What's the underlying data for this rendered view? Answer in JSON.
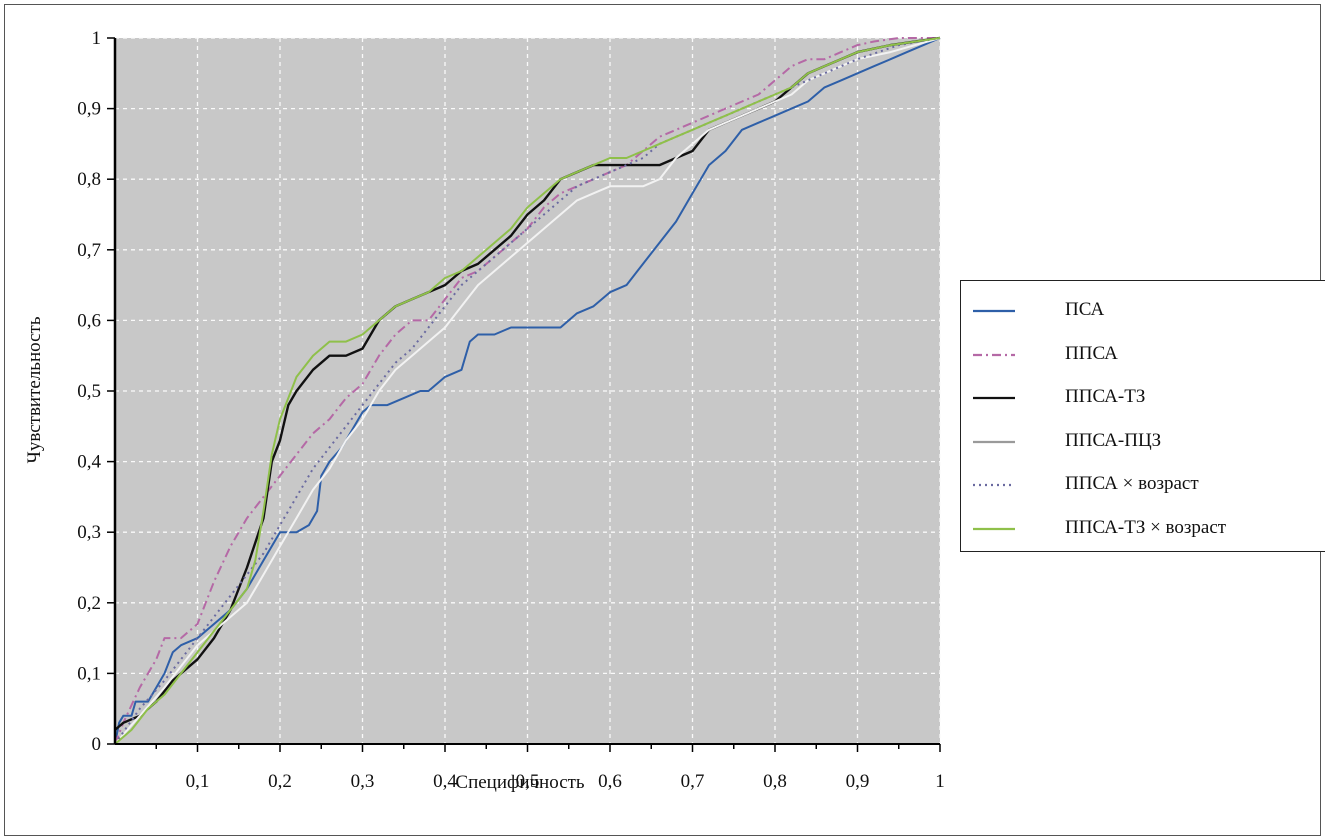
{
  "chart_data": {
    "type": "line",
    "xlabel": "Специфичность",
    "ylabel": "Чувствительность",
    "xlim": [
      0,
      1
    ],
    "ylim": [
      0,
      1
    ],
    "x_ticks": [
      "0,1",
      "0,2",
      "0,3",
      "0,4",
      "0,5",
      "0,6",
      "0,7",
      "0,8",
      "0,9",
      "1"
    ],
    "y_ticks": [
      "0",
      "0,1",
      "0,2",
      "0,3",
      "0,4",
      "0,5",
      "0,6",
      "0,7",
      "0,8",
      "0,9",
      "1"
    ],
    "grid": true,
    "plot_background": "#c8c8c8",
    "legend_position": "right",
    "series": [
      {
        "name": "ПСА",
        "color": "#2e5fa8",
        "dash": "solid",
        "points": [
          [
            0,
            0
          ],
          [
            0.005,
            0.03
          ],
          [
            0.01,
            0.04
          ],
          [
            0.02,
            0.04
          ],
          [
            0.025,
            0.06
          ],
          [
            0.03,
            0.06
          ],
          [
            0.04,
            0.06
          ],
          [
            0.05,
            0.08
          ],
          [
            0.06,
            0.1
          ],
          [
            0.07,
            0.13
          ],
          [
            0.08,
            0.14
          ],
          [
            0.1,
            0.15
          ],
          [
            0.12,
            0.17
          ],
          [
            0.14,
            0.19
          ],
          [
            0.16,
            0.22
          ],
          [
            0.18,
            0.26
          ],
          [
            0.2,
            0.3
          ],
          [
            0.22,
            0.3
          ],
          [
            0.235,
            0.31
          ],
          [
            0.245,
            0.33
          ],
          [
            0.25,
            0.38
          ],
          [
            0.26,
            0.4
          ],
          [
            0.275,
            0.42
          ],
          [
            0.29,
            0.45
          ],
          [
            0.3,
            0.47
          ],
          [
            0.31,
            0.48
          ],
          [
            0.33,
            0.48
          ],
          [
            0.35,
            0.49
          ],
          [
            0.37,
            0.5
          ],
          [
            0.38,
            0.5
          ],
          [
            0.4,
            0.52
          ],
          [
            0.42,
            0.53
          ],
          [
            0.43,
            0.57
          ],
          [
            0.44,
            0.58
          ],
          [
            0.46,
            0.58
          ],
          [
            0.48,
            0.59
          ],
          [
            0.5,
            0.59
          ],
          [
            0.52,
            0.59
          ],
          [
            0.54,
            0.59
          ],
          [
            0.56,
            0.61
          ],
          [
            0.58,
            0.62
          ],
          [
            0.6,
            0.64
          ],
          [
            0.62,
            0.65
          ],
          [
            0.64,
            0.68
          ],
          [
            0.66,
            0.71
          ],
          [
            0.68,
            0.74
          ],
          [
            0.7,
            0.78
          ],
          [
            0.72,
            0.82
          ],
          [
            0.74,
            0.84
          ],
          [
            0.76,
            0.87
          ],
          [
            0.78,
            0.88
          ],
          [
            0.8,
            0.89
          ],
          [
            0.82,
            0.9
          ],
          [
            0.84,
            0.91
          ],
          [
            0.86,
            0.93
          ],
          [
            0.88,
            0.94
          ],
          [
            0.9,
            0.95
          ],
          [
            0.92,
            0.96
          ],
          [
            0.94,
            0.97
          ],
          [
            0.96,
            0.98
          ],
          [
            0.98,
            0.99
          ],
          [
            1,
            1
          ]
        ]
      },
      {
        "name": "ППСА",
        "color": "#b569a6",
        "dash": "dashdot",
        "points": [
          [
            0,
            0
          ],
          [
            0.01,
            0.03
          ],
          [
            0.03,
            0.08
          ],
          [
            0.05,
            0.12
          ],
          [
            0.06,
            0.15
          ],
          [
            0.08,
            0.15
          ],
          [
            0.1,
            0.17
          ],
          [
            0.12,
            0.23
          ],
          [
            0.14,
            0.28
          ],
          [
            0.16,
            0.32
          ],
          [
            0.18,
            0.35
          ],
          [
            0.2,
            0.38
          ],
          [
            0.22,
            0.41
          ],
          [
            0.24,
            0.44
          ],
          [
            0.26,
            0.46
          ],
          [
            0.28,
            0.49
          ],
          [
            0.3,
            0.51
          ],
          [
            0.32,
            0.55
          ],
          [
            0.34,
            0.58
          ],
          [
            0.36,
            0.6
          ],
          [
            0.38,
            0.6
          ],
          [
            0.4,
            0.63
          ],
          [
            0.42,
            0.66
          ],
          [
            0.44,
            0.67
          ],
          [
            0.46,
            0.69
          ],
          [
            0.48,
            0.71
          ],
          [
            0.5,
            0.73
          ],
          [
            0.52,
            0.76
          ],
          [
            0.54,
            0.78
          ],
          [
            0.56,
            0.79
          ],
          [
            0.58,
            0.8
          ],
          [
            0.6,
            0.81
          ],
          [
            0.62,
            0.82
          ],
          [
            0.64,
            0.84
          ],
          [
            0.66,
            0.86
          ],
          [
            0.68,
            0.87
          ],
          [
            0.7,
            0.88
          ],
          [
            0.72,
            0.89
          ],
          [
            0.74,
            0.9
          ],
          [
            0.76,
            0.91
          ],
          [
            0.78,
            0.92
          ],
          [
            0.8,
            0.94
          ],
          [
            0.82,
            0.96
          ],
          [
            0.84,
            0.97
          ],
          [
            0.86,
            0.97
          ],
          [
            0.88,
            0.98
          ],
          [
            0.9,
            0.99
          ],
          [
            0.92,
            0.995
          ],
          [
            0.95,
            1
          ],
          [
            1,
            1
          ]
        ]
      },
      {
        "name": "ППСА-ТЗ",
        "color": "#111111",
        "dash": "solid",
        "points": [
          [
            0,
            0.02
          ],
          [
            0.01,
            0.03
          ],
          [
            0.03,
            0.04
          ],
          [
            0.05,
            0.06
          ],
          [
            0.07,
            0.09
          ],
          [
            0.09,
            0.11
          ],
          [
            0.1,
            0.12
          ],
          [
            0.12,
            0.15
          ],
          [
            0.14,
            0.19
          ],
          [
            0.16,
            0.25
          ],
          [
            0.18,
            0.32
          ],
          [
            0.19,
            0.4
          ],
          [
            0.2,
            0.43
          ],
          [
            0.21,
            0.48
          ],
          [
            0.22,
            0.5
          ],
          [
            0.24,
            0.53
          ],
          [
            0.26,
            0.55
          ],
          [
            0.28,
            0.55
          ],
          [
            0.3,
            0.56
          ],
          [
            0.32,
            0.6
          ],
          [
            0.34,
            0.62
          ],
          [
            0.36,
            0.63
          ],
          [
            0.38,
            0.64
          ],
          [
            0.4,
            0.65
          ],
          [
            0.42,
            0.67
          ],
          [
            0.44,
            0.68
          ],
          [
            0.46,
            0.7
          ],
          [
            0.48,
            0.72
          ],
          [
            0.5,
            0.75
          ],
          [
            0.52,
            0.77
          ],
          [
            0.54,
            0.8
          ],
          [
            0.56,
            0.81
          ],
          [
            0.58,
            0.82
          ],
          [
            0.6,
            0.82
          ],
          [
            0.62,
            0.82
          ],
          [
            0.64,
            0.82
          ],
          [
            0.66,
            0.82
          ],
          [
            0.68,
            0.83
          ],
          [
            0.7,
            0.84
          ],
          [
            0.72,
            0.87
          ],
          [
            0.74,
            0.88
          ],
          [
            0.76,
            0.89
          ],
          [
            0.78,
            0.9
          ],
          [
            0.8,
            0.91
          ],
          [
            0.82,
            0.93
          ],
          [
            0.84,
            0.95
          ],
          [
            0.86,
            0.96
          ],
          [
            0.88,
            0.97
          ],
          [
            0.9,
            0.98
          ],
          [
            0.94,
            0.99
          ],
          [
            1,
            1
          ]
        ]
      },
      {
        "name": "ППСА-ПЦЗ",
        "color": "#f2f2f2",
        "dash": "solid",
        "points": [
          [
            0,
            0
          ],
          [
            0.03,
            0.04
          ],
          [
            0.06,
            0.08
          ],
          [
            0.08,
            0.11
          ],
          [
            0.1,
            0.14
          ],
          [
            0.12,
            0.16
          ],
          [
            0.14,
            0.18
          ],
          [
            0.16,
            0.2
          ],
          [
            0.18,
            0.24
          ],
          [
            0.2,
            0.28
          ],
          [
            0.22,
            0.32
          ],
          [
            0.24,
            0.36
          ],
          [
            0.26,
            0.39
          ],
          [
            0.28,
            0.43
          ],
          [
            0.3,
            0.46
          ],
          [
            0.32,
            0.5
          ],
          [
            0.34,
            0.53
          ],
          [
            0.36,
            0.55
          ],
          [
            0.38,
            0.57
          ],
          [
            0.4,
            0.59
          ],
          [
            0.42,
            0.62
          ],
          [
            0.44,
            0.65
          ],
          [
            0.46,
            0.67
          ],
          [
            0.48,
            0.69
          ],
          [
            0.5,
            0.71
          ],
          [
            0.52,
            0.73
          ],
          [
            0.54,
            0.75
          ],
          [
            0.56,
            0.77
          ],
          [
            0.58,
            0.78
          ],
          [
            0.6,
            0.79
          ],
          [
            0.62,
            0.79
          ],
          [
            0.64,
            0.79
          ],
          [
            0.66,
            0.8
          ],
          [
            0.68,
            0.83
          ],
          [
            0.7,
            0.85
          ],
          [
            0.72,
            0.87
          ],
          [
            0.74,
            0.88
          ],
          [
            0.76,
            0.89
          ],
          [
            0.78,
            0.9
          ],
          [
            0.8,
            0.91
          ],
          [
            0.82,
            0.92
          ],
          [
            0.84,
            0.94
          ],
          [
            0.86,
            0.95
          ],
          [
            0.88,
            0.96
          ],
          [
            0.9,
            0.97
          ],
          [
            0.94,
            0.98
          ],
          [
            1,
            1
          ]
        ]
      },
      {
        "name": "ППСА × возраст",
        "color": "#6a6aa0",
        "dash": "dotted",
        "points": [
          [
            0,
            0
          ],
          [
            0.03,
            0.05
          ],
          [
            0.06,
            0.09
          ],
          [
            0.08,
            0.12
          ],
          [
            0.1,
            0.15
          ],
          [
            0.12,
            0.18
          ],
          [
            0.14,
            0.21
          ],
          [
            0.16,
            0.24
          ],
          [
            0.18,
            0.27
          ],
          [
            0.2,
            0.31
          ],
          [
            0.22,
            0.35
          ],
          [
            0.24,
            0.39
          ],
          [
            0.26,
            0.42
          ],
          [
            0.28,
            0.45
          ],
          [
            0.3,
            0.48
          ],
          [
            0.32,
            0.51
          ],
          [
            0.34,
            0.54
          ],
          [
            0.36,
            0.56
          ],
          [
            0.38,
            0.59
          ],
          [
            0.4,
            0.62
          ],
          [
            0.42,
            0.65
          ],
          [
            0.44,
            0.67
          ],
          [
            0.46,
            0.69
          ],
          [
            0.48,
            0.71
          ],
          [
            0.5,
            0.73
          ],
          [
            0.52,
            0.75
          ],
          [
            0.54,
            0.77
          ],
          [
            0.56,
            0.79
          ],
          [
            0.58,
            0.8
          ],
          [
            0.6,
            0.81
          ],
          [
            0.62,
            0.82
          ],
          [
            0.64,
            0.83
          ],
          [
            0.66,
            0.85
          ],
          [
            0.68,
            0.86
          ],
          [
            0.7,
            0.87
          ],
          [
            0.74,
            0.89
          ],
          [
            0.78,
            0.91
          ],
          [
            0.82,
            0.93
          ],
          [
            0.86,
            0.95
          ],
          [
            0.9,
            0.97
          ],
          [
            0.95,
            0.99
          ],
          [
            1,
            1
          ]
        ]
      },
      {
        "name": "ППСА-ТЗ × возраст",
        "color": "#8fc04a",
        "dash": "solid",
        "points": [
          [
            0,
            0
          ],
          [
            0.02,
            0.02
          ],
          [
            0.04,
            0.05
          ],
          [
            0.06,
            0.07
          ],
          [
            0.08,
            0.1
          ],
          [
            0.1,
            0.13
          ],
          [
            0.12,
            0.16
          ],
          [
            0.14,
            0.19
          ],
          [
            0.16,
            0.22
          ],
          [
            0.17,
            0.26
          ],
          [
            0.18,
            0.33
          ],
          [
            0.19,
            0.41
          ],
          [
            0.2,
            0.46
          ],
          [
            0.21,
            0.49
          ],
          [
            0.22,
            0.52
          ],
          [
            0.24,
            0.55
          ],
          [
            0.26,
            0.57
          ],
          [
            0.28,
            0.57
          ],
          [
            0.3,
            0.58
          ],
          [
            0.32,
            0.6
          ],
          [
            0.34,
            0.62
          ],
          [
            0.36,
            0.63
          ],
          [
            0.38,
            0.64
          ],
          [
            0.4,
            0.66
          ],
          [
            0.42,
            0.67
          ],
          [
            0.44,
            0.69
          ],
          [
            0.46,
            0.71
          ],
          [
            0.48,
            0.73
          ],
          [
            0.5,
            0.76
          ],
          [
            0.52,
            0.78
          ],
          [
            0.54,
            0.8
          ],
          [
            0.56,
            0.81
          ],
          [
            0.58,
            0.82
          ],
          [
            0.6,
            0.83
          ],
          [
            0.62,
            0.83
          ],
          [
            0.64,
            0.84
          ],
          [
            0.66,
            0.85
          ],
          [
            0.68,
            0.86
          ],
          [
            0.7,
            0.87
          ],
          [
            0.72,
            0.88
          ],
          [
            0.74,
            0.89
          ],
          [
            0.76,
            0.9
          ],
          [
            0.78,
            0.91
          ],
          [
            0.8,
            0.92
          ],
          [
            0.82,
            0.93
          ],
          [
            0.84,
            0.95
          ],
          [
            0.86,
            0.96
          ],
          [
            0.88,
            0.97
          ],
          [
            0.9,
            0.98
          ],
          [
            0.94,
            0.99
          ],
          [
            1,
            1
          ]
        ]
      }
    ]
  }
}
